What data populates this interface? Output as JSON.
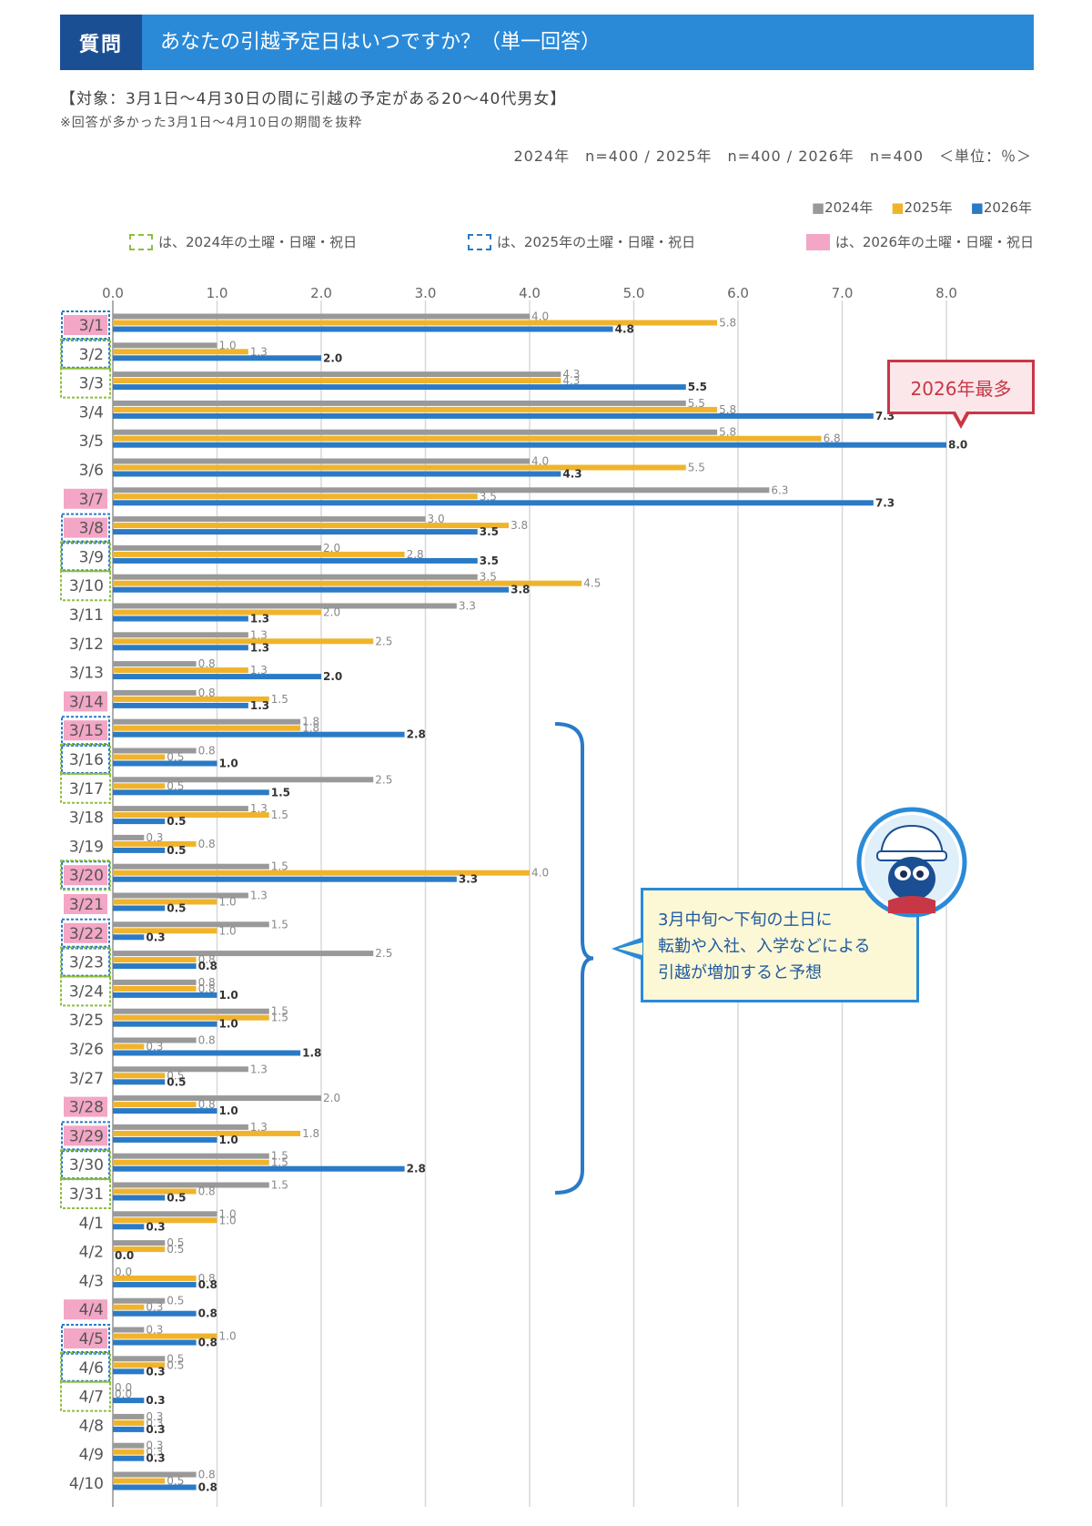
{
  "header": {
    "tag": "質問",
    "question": "あなたの引越予定日はいつですか？（単一回答）"
  },
  "subtitle": {
    "target": "【対象：3月1日〜4月30日の間に引越の予定がある20〜40代男女】",
    "note": "※回答が多かった3月1日〜4月10日の期間を抜粋",
    "sample": "2024年　n=400 / 2025年　n=400 / 2026年　n=400　＜単位：％＞"
  },
  "legend_series": [
    {
      "label": "■2024年",
      "color": "#999999"
    },
    {
      "label": "■2025年",
      "color": "#f0b32a"
    },
    {
      "label": "■2026年",
      "color": "#2a7ac6"
    }
  ],
  "legend_boxes": [
    {
      "label": "は、2024年の土曜・日曜・祝日",
      "color": "#8cbf3f"
    },
    {
      "label": "は、2025年の土曜・日曜・祝日",
      "color": "#2a7ac6"
    },
    {
      "label": "は、2026年の土曜・日曜・祝日",
      "color": "#f3a6c5"
    }
  ],
  "badge": "2026年最多",
  "callout": [
    "3月中旬〜下旬の土日に",
    "転勤や入社、入学などによる",
    "引越が増加すると予想"
  ],
  "mascot": "mascot-character",
  "chart_data": {
    "type": "bar",
    "orientation": "horizontal",
    "xlim": [
      0,
      8.0
    ],
    "ticks": [
      "0.0",
      "1.0",
      "2.0",
      "3.0",
      "4.0",
      "5.0",
      "6.0",
      "7.0",
      "8.0"
    ],
    "categories": [
      "3/1",
      "3/2",
      "3/3",
      "3/4",
      "3/5",
      "3/6",
      "3/7",
      "3/8",
      "3/9",
      "3/10",
      "3/11",
      "3/12",
      "3/13",
      "3/14",
      "3/15",
      "3/16",
      "3/17",
      "3/18",
      "3/19",
      "3/20",
      "3/21",
      "3/22",
      "3/23",
      "3/24",
      "3/25",
      "3/26",
      "3/27",
      "3/28",
      "3/29",
      "3/30",
      "3/31",
      "4/1",
      "4/2",
      "4/3",
      "4/4",
      "4/5",
      "4/6",
      "4/7",
      "4/8",
      "4/9",
      "4/10"
    ],
    "series": [
      {
        "name": "2024年",
        "color": "#999999",
        "values": [
          4.0,
          1.0,
          4.3,
          5.5,
          5.8,
          4.0,
          6.3,
          3.0,
          2.0,
          3.5,
          3.3,
          1.3,
          0.8,
          0.8,
          1.8,
          0.8,
          2.5,
          1.3,
          0.3,
          1.5,
          1.3,
          1.5,
          2.5,
          0.8,
          1.5,
          0.8,
          1.3,
          2.0,
          1.3,
          1.5,
          1.5,
          1.0,
          0.5,
          0.0,
          0.5,
          0.3,
          0.5,
          0.0,
          0.3,
          0.3,
          0.8
        ]
      },
      {
        "name": "2025年",
        "color": "#f0b32a",
        "values": [
          5.8,
          1.3,
          4.3,
          5.8,
          6.8,
          5.5,
          3.5,
          3.8,
          2.8,
          4.5,
          2.0,
          2.5,
          1.3,
          1.5,
          1.8,
          0.5,
          0.5,
          1.5,
          0.8,
          4.0,
          1.0,
          1.0,
          0.8,
          0.8,
          1.5,
          0.3,
          0.5,
          0.8,
          1.8,
          1.5,
          0.8,
          1.0,
          0.5,
          0.8,
          0.3,
          1.0,
          0.5,
          0.0,
          0.3,
          0.3,
          0.5
        ]
      },
      {
        "name": "2026年",
        "color": "#2a7ac6",
        "values": [
          4.8,
          2.0,
          5.5,
          7.3,
          8.0,
          4.3,
          7.3,
          3.5,
          3.5,
          3.8,
          1.3,
          1.3,
          2.0,
          1.3,
          2.8,
          1.0,
          1.5,
          0.5,
          0.5,
          3.3,
          0.5,
          0.3,
          0.8,
          1.0,
          1.0,
          1.8,
          0.5,
          1.0,
          1.0,
          2.8,
          0.5,
          0.3,
          0.0,
          0.8,
          0.8,
          0.8,
          0.3,
          0.3,
          0.3,
          0.3,
          0.8
        ]
      }
    ],
    "highlights": {
      "pink_2026": [
        "3/1",
        "3/7",
        "3/8",
        "3/14",
        "3/15",
        "3/20",
        "3/21",
        "3/22",
        "3/28",
        "3/29",
        "4/4",
        "4/5"
      ],
      "blue_2025": [
        "3/1",
        "3/2",
        "3/8",
        "3/9",
        "3/15",
        "3/16",
        "3/20",
        "3/22",
        "3/23",
        "3/29",
        "3/30",
        "4/5",
        "4/6"
      ],
      "green_2024": [
        "3/2",
        "3/3",
        "3/9",
        "3/10",
        "3/16",
        "3/17",
        "3/20",
        "3/23",
        "3/24",
        "3/30",
        "3/31",
        "4/6",
        "4/7"
      ]
    }
  }
}
